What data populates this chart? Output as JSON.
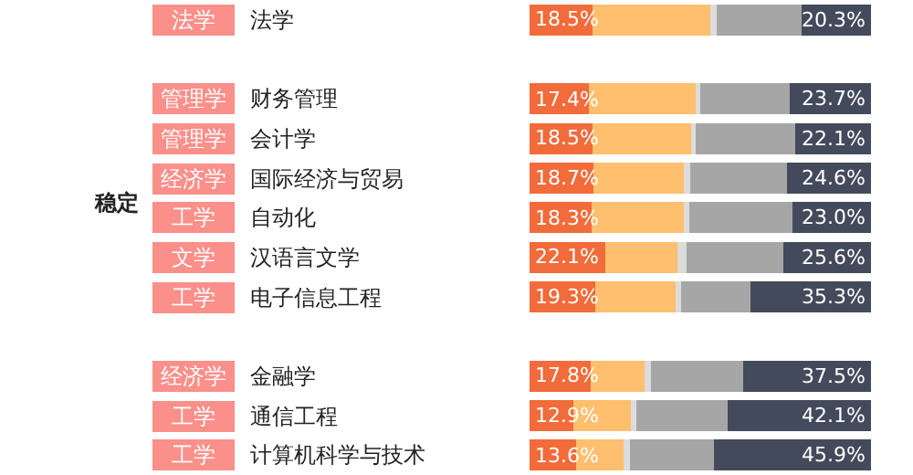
{
  "chart_data": {
    "type": "bar",
    "orientation": "horizontal",
    "stacked": true,
    "categories": [
      "法学",
      null,
      "财务管理",
      "会计学",
      "国际经济与贸易",
      "自动化",
      "汉语言文学",
      "电子信息工程",
      null,
      "金融学",
      "通信工程",
      "计算机科学与技术"
    ],
    "series": [
      {
        "color": "#f26b3a",
        "values": [
          18.5,
          null,
          17.4,
          18.5,
          18.7,
          18.3,
          22.1,
          19.3,
          null,
          17.8,
          12.9,
          13.6
        ],
        "value_labels": [
          "18.5%",
          null,
          "17.4%",
          "18.5%",
          "18.7%",
          "18.3%",
          "22.1%",
          "19.3%",
          null,
          "17.8%",
          "12.9%",
          "13.6%"
        ]
      },
      {
        "color": "#ffbf6e",
        "values": [
          34.5,
          null,
          31.3,
          28.8,
          26.5,
          26.9,
          21.3,
          23.5,
          null,
          15.9,
          16.7,
          13.9
        ]
      },
      {
        "color": "#dcdcdc",
        "values": [
          1.8,
          null,
          1.3,
          1.4,
          1.8,
          1.6,
          2.7,
          1.5,
          null,
          1.8,
          1.8,
          1.8
        ]
      },
      {
        "color": "#a6a6a6",
        "values": [
          24.9,
          null,
          26.3,
          29.2,
          28.4,
          30.2,
          28.3,
          20.4,
          null,
          27.0,
          26.5,
          24.8
        ]
      },
      {
        "color": "#434a5b",
        "values": [
          20.3,
          null,
          23.7,
          22.1,
          24.6,
          23.0,
          25.6,
          35.3,
          null,
          37.5,
          42.1,
          45.9
        ],
        "value_labels": [
          "20.3%",
          null,
          "23.7%",
          "22.1%",
          "24.6%",
          "23.0%",
          "25.6%",
          "35.3%",
          null,
          "37.5%",
          "42.1%",
          "45.9%"
        ]
      }
    ],
    "xlim": [
      0,
      100
    ],
    "annotations": [
      "法学",
      "管理学",
      "管理学",
      "经济学",
      "工学",
      "文学",
      "工学",
      "经济学",
      "工学",
      "工学",
      "稳定"
    ]
  }
}
